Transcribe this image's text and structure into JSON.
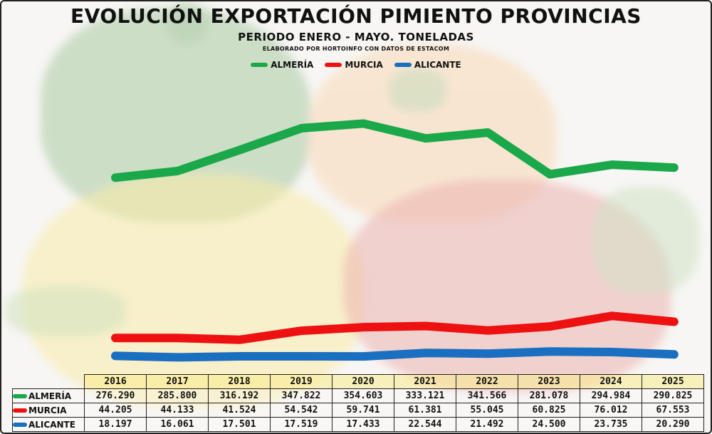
{
  "title": "EVOLUCIÓN EXPORTACIÓN PIMIENTO PROVINCIAS",
  "subtitle": "PERIODO ENERO - MAYO. TONELADAS",
  "note": "ELABORADO POR HORTOINFO CON DATOS DE ESTACOM",
  "chart_data": {
    "type": "line",
    "title": "EVOLUCIÓN EXPORTACIÓN PIMIENTO PROVINCIAS",
    "subtitle": "PERIODO ENERO - MAYO. TONELADAS",
    "x": [
      "2016",
      "2017",
      "2018",
      "2019",
      "2020",
      "2021",
      "2022",
      "2023",
      "2024",
      "2025"
    ],
    "series": [
      {
        "name": "ALMERÍA",
        "color": "#1aa84a",
        "values": [
          276290,
          285800,
          316192,
          347822,
          354603,
          333121,
          341566,
          281078,
          294984,
          290825
        ],
        "labels": [
          "276.290",
          "285.800",
          "316.192",
          "347.822",
          "354.603",
          "333.121",
          "341.566",
          "281.078",
          "294.984",
          "290.825"
        ]
      },
      {
        "name": "MURCIA",
        "color": "#ee1111",
        "values": [
          44205,
          44133,
          41524,
          54542,
          59741,
          61381,
          55045,
          60825,
          76012,
          67553
        ],
        "labels": [
          "44.205",
          "44.133",
          "41.524",
          "54.542",
          "59.741",
          "61.381",
          "55.045",
          "60.825",
          "76.012",
          "67.553"
        ]
      },
      {
        "name": "ALICANTE",
        "color": "#1a6fc0",
        "values": [
          18197,
          16061,
          17501,
          17519,
          17433,
          22544,
          21492,
          24500,
          23735,
          20290
        ],
        "labels": [
          "18.197",
          "16.061",
          "17.501",
          "17.519",
          "17.433",
          "22.544",
          "21.492",
          "24.500",
          "23.735",
          "20.290"
        ]
      }
    ],
    "ylim": [
      0,
      420000
    ],
    "legend": "top-center",
    "grid": false
  }
}
